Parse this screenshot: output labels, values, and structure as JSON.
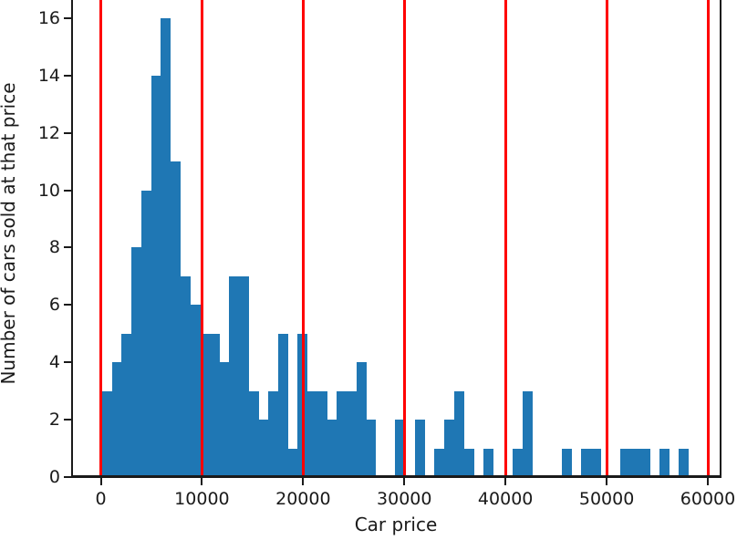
{
  "figure": {
    "background": "#ffffff",
    "note": "matplotlib-style histogram, top edge of axes cropped by screenshot"
  },
  "chart_data": {
    "type": "bar",
    "subtype": "histogram",
    "title": "",
    "xlabel": "Car price",
    "ylabel": "Number of cars sold at that price",
    "bar_color": "#1f77b4",
    "axis_color": "#1a1a1a",
    "grid": false,
    "legend": null,
    "xlim": [
      -2840,
      61260
    ],
    "ylim": [
      0,
      16.6
    ],
    "x_tick_values": [
      0,
      10000,
      20000,
      30000,
      40000,
      50000,
      60000
    ],
    "x_tick_labels": [
      "0",
      "10000",
      "20000",
      "30000",
      "40000",
      "50000",
      "60000"
    ],
    "y_tick_values": [
      0,
      2,
      4,
      6,
      8,
      10,
      12,
      14,
      16
    ],
    "y_tick_labels": [
      "0",
      "2",
      "4",
      "6",
      "8",
      "10",
      "12",
      "14",
      "16"
    ],
    "histogram": {
      "first_bin_start": 135,
      "bin_width": 966,
      "counts": [
        3,
        4,
        5,
        8,
        10,
        14,
        16,
        11,
        7,
        6,
        5,
        5,
        4,
        7,
        7,
        3,
        2,
        3,
        5,
        1,
        5,
        3,
        3,
        2,
        3,
        3,
        4,
        2,
        0,
        0,
        2,
        0,
        2,
        0,
        1,
        2,
        3,
        1,
        0,
        1,
        0,
        0,
        1,
        3,
        0,
        0,
        0,
        1,
        0,
        1,
        1,
        0,
        0,
        1,
        1,
        1,
        0,
        1,
        0,
        1
      ]
    },
    "vlines": {
      "color": "#ff0000",
      "positions": [
        0,
        10000,
        20000,
        30000,
        40000,
        50000,
        60000
      ]
    }
  }
}
